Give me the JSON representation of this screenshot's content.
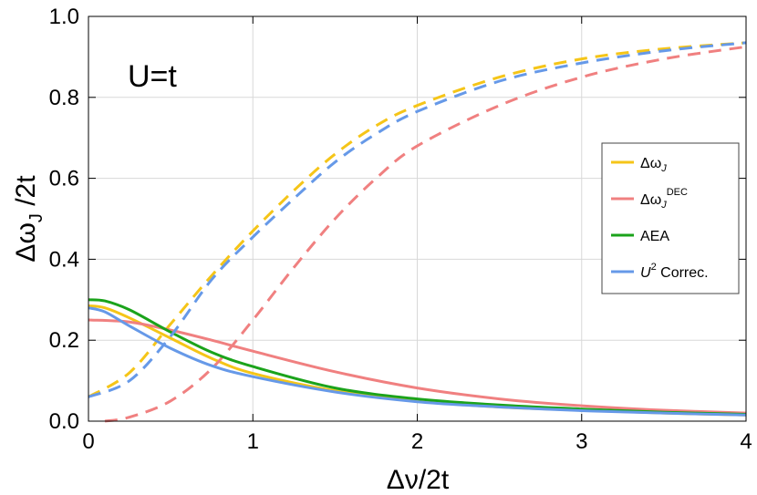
{
  "chart_data": {
    "type": "line",
    "annotation": "U=t",
    "xlabel": "Δν/2t",
    "ylabel": "Δω",
    "ylabel_sub": "J",
    "ylabel_suffix": " /2t",
    "xlim": [
      0,
      4
    ],
    "ylim": [
      0,
      1
    ],
    "x_ticks": [
      0,
      1,
      2,
      3,
      4
    ],
    "x_tick_labels": [
      "0",
      "1",
      "2",
      "3",
      "4"
    ],
    "y_ticks": [
      0,
      0.2,
      0.4,
      0.6,
      0.8,
      1.0
    ],
    "y_tick_labels": [
      "0.0",
      "0.2",
      "0.4",
      "0.6",
      "0.8",
      "1.0"
    ],
    "grid": true,
    "legend_position": "right",
    "legend": [
      {
        "symbol": "Δω",
        "sub": "J",
        "sup": "",
        "text": ""
      },
      {
        "symbol": "Δω",
        "sub": "J",
        "sup": "DEC",
        "text": ""
      },
      {
        "symbol": "",
        "sub": "",
        "sup": "",
        "text": "AEA"
      },
      {
        "symbol": "U",
        "sub": "",
        "sup": "2",
        "text": " Correc."
      }
    ],
    "series": [
      {
        "color": "#F5C518",
        "dash": true,
        "x": [
          0,
          0.25,
          0.5,
          0.75,
          1.0,
          1.25,
          1.5,
          1.75,
          2.0,
          2.5,
          3.0,
          3.5,
          4.0
        ],
        "y": [
          0.06,
          0.12,
          0.24,
          0.36,
          0.47,
          0.57,
          0.66,
          0.73,
          0.78,
          0.85,
          0.895,
          0.92,
          0.935
        ]
      },
      {
        "color": "#F5C518",
        "dash": false,
        "x": [
          0,
          0.1,
          0.25,
          0.5,
          0.75,
          1.0,
          1.5,
          2.0,
          2.5,
          3.0,
          3.5,
          4.0
        ],
        "y": [
          0.285,
          0.28,
          0.255,
          0.205,
          0.155,
          0.118,
          0.075,
          0.05,
          0.035,
          0.027,
          0.02,
          0.015
        ]
      },
      {
        "color": "#F08080",
        "dash": true,
        "x": [
          0.1,
          0.25,
          0.5,
          0.75,
          1.0,
          1.25,
          1.5,
          1.75,
          2.0,
          2.5,
          3.0,
          3.5,
          4.0
        ],
        "y": [
          0.0,
          0.01,
          0.05,
          0.13,
          0.25,
          0.38,
          0.5,
          0.6,
          0.68,
          0.78,
          0.85,
          0.895,
          0.925
        ]
      },
      {
        "color": "#F08080",
        "dash": false,
        "x": [
          0,
          0.25,
          0.5,
          0.75,
          1.0,
          1.5,
          2.0,
          2.5,
          3.0,
          3.5,
          4.0
        ],
        "y": [
          0.25,
          0.245,
          0.225,
          0.2,
          0.173,
          0.122,
          0.082,
          0.055,
          0.038,
          0.027,
          0.02
        ]
      },
      {
        "color": "#1BA31B",
        "dash": false,
        "x": [
          0,
          0.1,
          0.25,
          0.5,
          0.75,
          1.0,
          1.5,
          2.0,
          2.5,
          3.0,
          3.5,
          4.0
        ],
        "y": [
          0.3,
          0.297,
          0.275,
          0.22,
          0.17,
          0.135,
          0.082,
          0.055,
          0.04,
          0.03,
          0.022,
          0.017
        ]
      },
      {
        "color": "#6699E8",
        "dash": true,
        "x": [
          0,
          0.25,
          0.5,
          0.75,
          1.0,
          1.25,
          1.5,
          1.75,
          2.0,
          2.5,
          3.0,
          3.5,
          4.0
        ],
        "y": [
          0.06,
          0.1,
          0.21,
          0.35,
          0.455,
          0.55,
          0.64,
          0.71,
          0.765,
          0.84,
          0.885,
          0.915,
          0.935
        ]
      },
      {
        "color": "#6699E8",
        "dash": false,
        "x": [
          0,
          0.1,
          0.25,
          0.5,
          0.75,
          1.0,
          1.5,
          2.0,
          2.5,
          3.0,
          3.5,
          4.0
        ],
        "y": [
          0.28,
          0.27,
          0.235,
          0.18,
          0.137,
          0.11,
          0.072,
          0.048,
          0.035,
          0.026,
          0.02,
          0.015
        ]
      }
    ],
    "colors": {
      "legend_1": "#F5C518",
      "legend_2": "#F08080",
      "legend_3": "#1BA31B",
      "legend_4": "#6699E8",
      "grid": "#D8D8D8"
    }
  }
}
